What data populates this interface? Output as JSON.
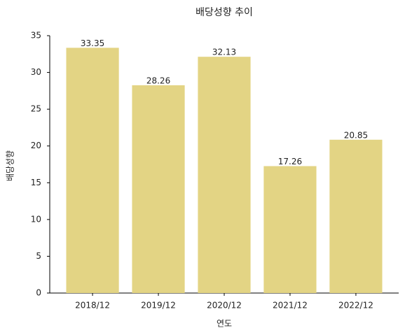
{
  "chart_data": {
    "type": "bar",
    "title": "배당성향 추이",
    "x_label": "연도",
    "y_label": "배당성향",
    "categories": [
      "2018/12",
      "2019/12",
      "2020/12",
      "2021/12",
      "2022/12"
    ],
    "values": [
      33.35,
      28.26,
      32.13,
      17.26,
      20.85
    ],
    "color": "#e3d484",
    "ylim": [
      0,
      35
    ],
    "yticks": [
      0,
      5,
      10,
      15,
      20,
      25,
      30,
      35
    ],
    "grid": false
  }
}
